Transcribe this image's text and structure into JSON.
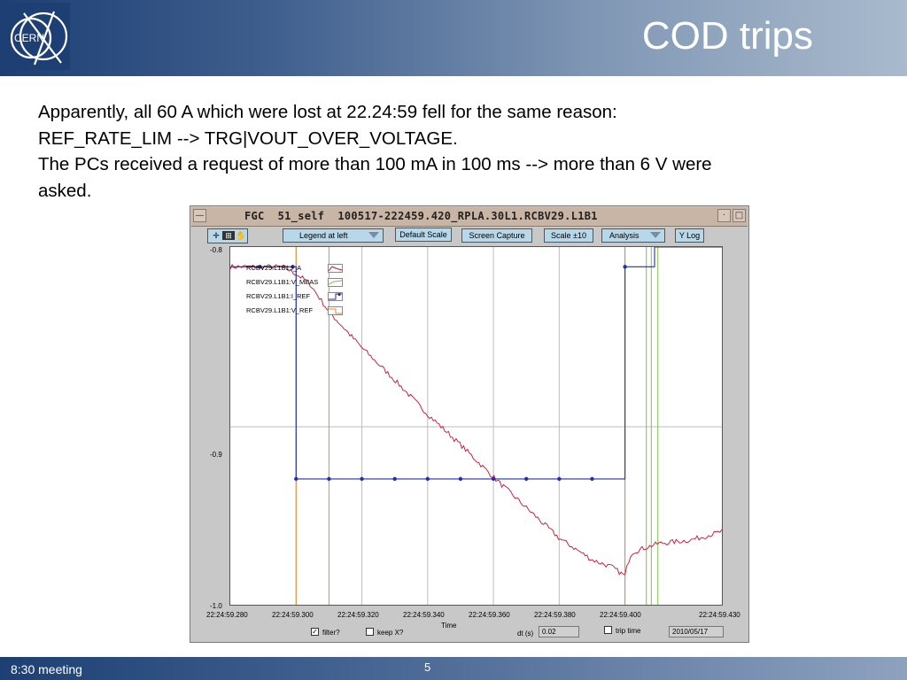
{
  "slide": {
    "title": "COD trips",
    "logo_text": "CERN",
    "paragraphs": [
      "Apparently, all 60 A which were lost at 22.24:59 fell for the same reason:",
      "REF_RATE_LIM --> TRG|VOUT_OVER_VOLTAGE.",
      "The PCs received a request of more than 100 mA in 100 ms --> more than 6 V were",
      "asked."
    ],
    "footer_left": "8:30 meeting",
    "page_number": "5"
  },
  "fgc": {
    "window_title": "FGC  51_self  100517-222459.420_RPLA.30L1.RCBV29.L1B1",
    "toolbar": {
      "legend_dropdown": "Legend at left",
      "default_scale": "Default Scale",
      "screen_capture": "Screen Capture",
      "scale": "Scale ±10",
      "analysis": "Analysis",
      "ylog": "Y Log"
    },
    "bottom": {
      "xaxis_title": "Time",
      "filter_label": "filter?",
      "filter_checked": true,
      "keepx_label": "keep X?",
      "keepx_checked": false,
      "dt_label": "dt (s)",
      "dt_value": "0.02",
      "trip_time_label": "trip time",
      "trip_time_checked": false,
      "date_value": "2010/05/17"
    }
  },
  "chart_data": {
    "type": "line",
    "ylim": [
      -1.0,
      -0.8
    ],
    "xlim": [
      "22:24:59.280",
      "22:24:59.430"
    ],
    "yticks": [
      "-0.8",
      "-0.9",
      "-1.0"
    ],
    "xticks": [
      "22:24:59.280",
      "22:24:59.300",
      "22:24:59.320",
      "22:24:59.340",
      "22:24:59.360",
      "22:24:59.380",
      "22:24:59.400",
      "22:24:59.430"
    ],
    "grid": true,
    "legend": "top-left",
    "series": [
      {
        "name": "RCBV29.L1B1:I_A",
        "color": "#c8102e",
        "x": [
          0.28,
          0.29,
          0.296,
          0.3,
          0.304,
          0.31,
          0.32,
          0.33,
          0.34,
          0.35,
          0.36,
          0.37,
          0.38,
          0.39,
          0.396,
          0.4,
          0.401,
          0.402,
          0.405,
          0.41,
          0.42,
          0.43
        ],
        "y": [
          -0.811,
          -0.811,
          -0.811,
          -0.815,
          -0.82,
          -0.836,
          -0.856,
          -0.874,
          -0.893,
          -0.91,
          -0.928,
          -0.945,
          -0.962,
          -0.974,
          -0.978,
          -0.983,
          -0.975,
          -0.97,
          -0.968,
          -0.965,
          -0.963,
          -0.958
        ]
      },
      {
        "name": "RCBV29.L1B1:V_MEAS",
        "color": "#7bc24a",
        "x": [
          0.31,
          0.31,
          0.408,
          0.408
        ],
        "y": [
          -0.8,
          -1.0,
          -0.8,
          -1.0
        ]
      },
      {
        "name": "RCBV29.L1B1:I_REF",
        "color": "#1f2fb5",
        "x": [
          0.28,
          0.289,
          0.299,
          0.3,
          0.3,
          0.31,
          0.32,
          0.33,
          0.34,
          0.35,
          0.36,
          0.37,
          0.38,
          0.39,
          0.4,
          0.4,
          0.409,
          0.409,
          0.43
        ],
        "y": [
          -0.811,
          -0.811,
          -0.811,
          -0.811,
          -0.929,
          -0.929,
          -0.929,
          -0.929,
          -0.929,
          -0.929,
          -0.929,
          -0.929,
          -0.929,
          -0.929,
          -0.929,
          -0.811,
          -0.811,
          -0.8,
          -0.8
        ]
      },
      {
        "name": "RCBV29.L1B1:V_REF",
        "color": "#e08a2a",
        "x": [
          0.3,
          0.3,
          0.4,
          0.4
        ],
        "y": [
          -0.8,
          -1.0,
          -0.8,
          -1.0
        ]
      }
    ]
  }
}
